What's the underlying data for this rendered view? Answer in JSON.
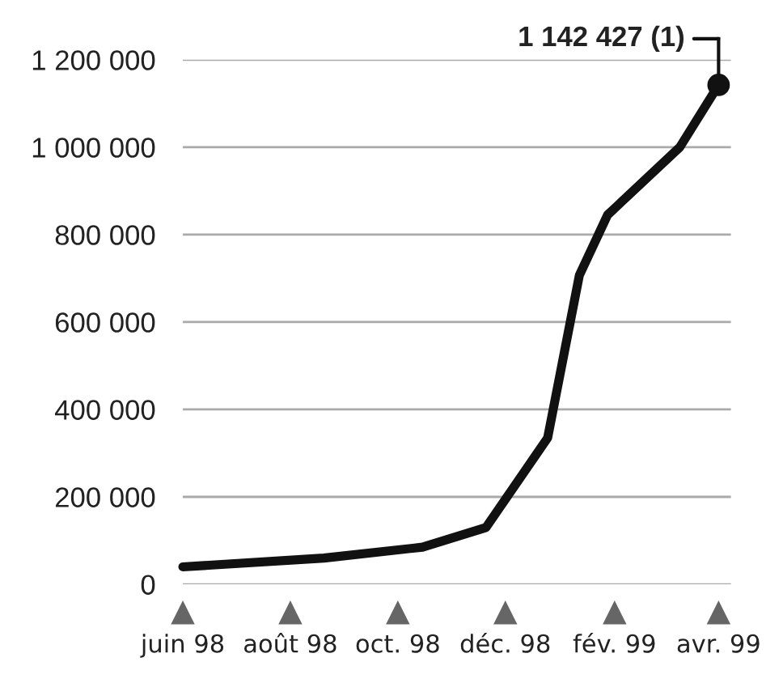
{
  "chart_data": {
    "type": "line",
    "x": [
      "1998-06-01",
      "1998-08-20",
      "1998-10-15",
      "1998-11-20",
      "1998-12-25",
      "1999-01-12",
      "1999-01-28",
      "1999-03-10",
      "1999-04-01"
    ],
    "series": [
      {
        "color": "#111111",
        "values": [
          40000,
          60000,
          85000,
          130000,
          335000,
          707000,
          845000,
          1000000,
          1142427
        ]
      }
    ],
    "xlim": [
      "1998-06-01",
      "1999-04-08"
    ],
    "xticks": [
      {
        "value": "1998-06-01",
        "label": "juin 98"
      },
      {
        "value": "1998-08-01",
        "label": "août 98"
      },
      {
        "value": "1998-10-01",
        "label": "oct. 98"
      },
      {
        "value": "1998-12-01",
        "label": "déc. 98"
      },
      {
        "value": "1999-02-01",
        "label": "fév. 99"
      },
      {
        "value": "1999-04-01",
        "label": "avr. 99"
      }
    ],
    "ylim": [
      0,
      1200000
    ],
    "yticks": [
      {
        "value": 0,
        "label": "0"
      },
      {
        "value": 200000,
        "label": "200 000"
      },
      {
        "value": 400000,
        "label": "400 000"
      },
      {
        "value": 600000,
        "label": "600 000"
      },
      {
        "value": 800000,
        "label": "800 000"
      },
      {
        "value": 1000000,
        "label": "1 000 000"
      },
      {
        "value": 1200000,
        "label": "1 200 000"
      }
    ],
    "grid": "y",
    "annotations": [
      {
        "text": "1 142 427 (1)",
        "x": "1999-04-01",
        "y": 1142427
      }
    ]
  }
}
